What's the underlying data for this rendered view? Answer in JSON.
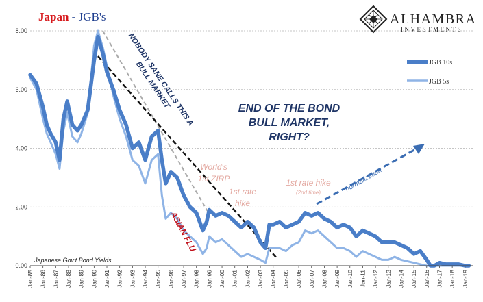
{
  "title": {
    "main": "Japan",
    "sep": " - ",
    "sub": "JGB's"
  },
  "logo": {
    "name": "ALHAMBRA",
    "sub": "INVESTMENTS",
    "icon": "diamond-lattice-icon"
  },
  "colors": {
    "jgb10": "#4a7ec8",
    "jgb5": "#8fb4e6",
    "title_red": "#d7191c",
    "title_blue": "#1f3f8f",
    "annot_navy": "#1f3566",
    "annot_pink": "#e3a8a0",
    "annot_red": "#c0101a",
    "grid": "#b3b3b3"
  },
  "source_note": "Japanese Gov't Bond Yields",
  "annotations": {
    "end_line1": "END OF THE BOND",
    "end_line2": "BULL MARKET,",
    "end_line3": "RIGHT?",
    "nobody_line1": "NOBODY SANE CALLS THIS A",
    "nobody_line2": "BULL MARKET",
    "asian_flu": "ASIAN FLU",
    "zirp_line1": "World's",
    "zirp_line2": "1st ZIRP",
    "hike1_line1": "1st rate",
    "hike1_line2": "hike",
    "hike2_line1": "1st rate hike",
    "hike2_line2": "(2nd time)",
    "normalization": "normalization"
  },
  "chart_data": {
    "type": "line",
    "title": "Japan - JGB's",
    "xlabel": "",
    "ylabel": "",
    "ylim": [
      0,
      8
    ],
    "yticks": [
      "0.00",
      "2.00",
      "4.00",
      "6.00",
      "8.00"
    ],
    "xticks": [
      "Jan-85",
      "Jan-86",
      "Jan-87",
      "Jan-88",
      "Jan-89",
      "Jan-90",
      "Jan-91",
      "Jan-92",
      "Jan-93",
      "Jan-94",
      "Jan-95",
      "Jan-96",
      "Jan-97",
      "Jan-98",
      "Jan-99",
      "Jan-00",
      "Jan-01",
      "Jan-02",
      "Jan-03",
      "Jan-04",
      "Jan-05",
      "Jan-06",
      "Jan-07",
      "Jan-08",
      "Jan-09",
      "Jan-10",
      "Jan-11",
      "Jan-12",
      "Jan-13",
      "Jan-14",
      "Jan-15",
      "Jan-16",
      "Jan-17",
      "Jan-18",
      "Jan-19"
    ],
    "grid": true,
    "legend": "right",
    "series": [
      {
        "name": "JGB 10s",
        "x": [
          1985.0,
          1985.5,
          1986.0,
          1986.3,
          1986.6,
          1987.0,
          1987.3,
          1987.6,
          1987.9,
          1988.3,
          1988.7,
          1989.0,
          1989.5,
          1990.0,
          1990.3,
          1990.7,
          1991.0,
          1991.5,
          1992.0,
          1992.5,
          1993.0,
          1993.5,
          1994.0,
          1994.5,
          1995.0,
          1995.3,
          1995.6,
          1996.0,
          1996.5,
          1997.0,
          1997.5,
          1998.0,
          1998.5,
          1998.8,
          1999.0,
          1999.5,
          2000.0,
          2000.5,
          2001.0,
          2001.5,
          2002.0,
          2002.5,
          2003.0,
          2003.4,
          2003.7,
          2004.0,
          2004.5,
          2005.0,
          2005.5,
          2006.0,
          2006.5,
          2007.0,
          2007.5,
          2008.0,
          2008.5,
          2009.0,
          2009.5,
          2010.0,
          2010.5,
          2011.0,
          2011.5,
          2012.0,
          2012.5,
          2013.0,
          2013.5,
          2014.0,
          2014.5,
          2015.0,
          2015.5,
          2016.0,
          2016.3,
          2016.6,
          2017.0,
          2017.5,
          2018.0,
          2018.5,
          2019.0,
          2019.3
        ],
        "values": [
          6.5,
          6.2,
          5.4,
          4.8,
          4.5,
          4.2,
          3.6,
          5.0,
          5.6,
          4.8,
          4.6,
          4.8,
          5.3,
          7.0,
          7.8,
          7.2,
          6.6,
          6.0,
          5.3,
          4.8,
          4.0,
          4.2,
          3.6,
          4.4,
          4.6,
          3.6,
          2.8,
          3.2,
          3.0,
          2.4,
          2.0,
          1.8,
          1.2,
          1.5,
          1.9,
          1.7,
          1.8,
          1.7,
          1.5,
          1.3,
          1.5,
          1.3,
          0.8,
          0.6,
          1.4,
          1.4,
          1.5,
          1.3,
          1.4,
          1.5,
          1.8,
          1.7,
          1.8,
          1.6,
          1.5,
          1.3,
          1.4,
          1.3,
          1.0,
          1.2,
          1.1,
          1.0,
          0.8,
          0.8,
          0.8,
          0.7,
          0.6,
          0.4,
          0.5,
          0.2,
          -0.1,
          -0.1,
          0.1,
          0.05,
          0.05,
          0.05,
          0.0,
          -0.05
        ]
      },
      {
        "name": "JGB 5s",
        "x": [
          1985.0,
          1985.5,
          1986.0,
          1986.3,
          1986.6,
          1987.0,
          1987.3,
          1987.6,
          1987.9,
          1988.3,
          1988.7,
          1989.0,
          1989.5,
          1990.0,
          1990.3,
          1990.7,
          1991.0,
          1991.5,
          1992.0,
          1992.5,
          1993.0,
          1993.5,
          1994.0,
          1994.5,
          1995.0,
          1995.3,
          1995.6,
          1996.0,
          1996.5,
          1997.0,
          1997.5,
          1998.0,
          1998.5,
          1998.8,
          1999.0,
          1999.5,
          2000.0,
          2000.5,
          2001.0,
          2001.5,
          2002.0,
          2002.5,
          2003.0,
          2003.4,
          2003.7,
          2004.0,
          2004.5,
          2005.0,
          2005.5,
          2006.0,
          2006.5,
          2007.0,
          2007.5,
          2008.0,
          2008.5,
          2009.0,
          2009.5,
          2010.0,
          2010.5,
          2011.0,
          2011.5,
          2012.0,
          2012.5,
          2013.0,
          2013.5,
          2014.0,
          2014.5,
          2015.0,
          2015.5,
          2016.0,
          2016.3,
          2016.6,
          2017.0,
          2017.5,
          2018.0,
          2018.5,
          2019.0,
          2019.3
        ],
        "values": [
          6.4,
          6.0,
          5.0,
          4.5,
          4.2,
          3.8,
          3.3,
          4.6,
          5.2,
          4.4,
          4.2,
          4.5,
          5.2,
          7.5,
          8.0,
          7.4,
          6.8,
          5.8,
          5.0,
          4.4,
          3.6,
          3.4,
          2.8,
          3.6,
          3.8,
          2.4,
          1.6,
          1.8,
          1.6,
          1.2,
          1.0,
          0.8,
          0.4,
          0.6,
          1.0,
          0.8,
          0.9,
          0.7,
          0.5,
          0.3,
          0.4,
          0.3,
          0.2,
          0.1,
          0.6,
          0.6,
          0.6,
          0.5,
          0.7,
          0.8,
          1.2,
          1.1,
          1.2,
          1.0,
          0.8,
          0.6,
          0.6,
          0.5,
          0.3,
          0.5,
          0.4,
          0.3,
          0.2,
          0.2,
          0.3,
          0.2,
          0.15,
          0.1,
          0.05,
          -0.1,
          -0.2,
          -0.25,
          -0.15,
          -0.1,
          -0.1,
          -0.1,
          -0.15,
          -0.2
        ]
      }
    ]
  }
}
